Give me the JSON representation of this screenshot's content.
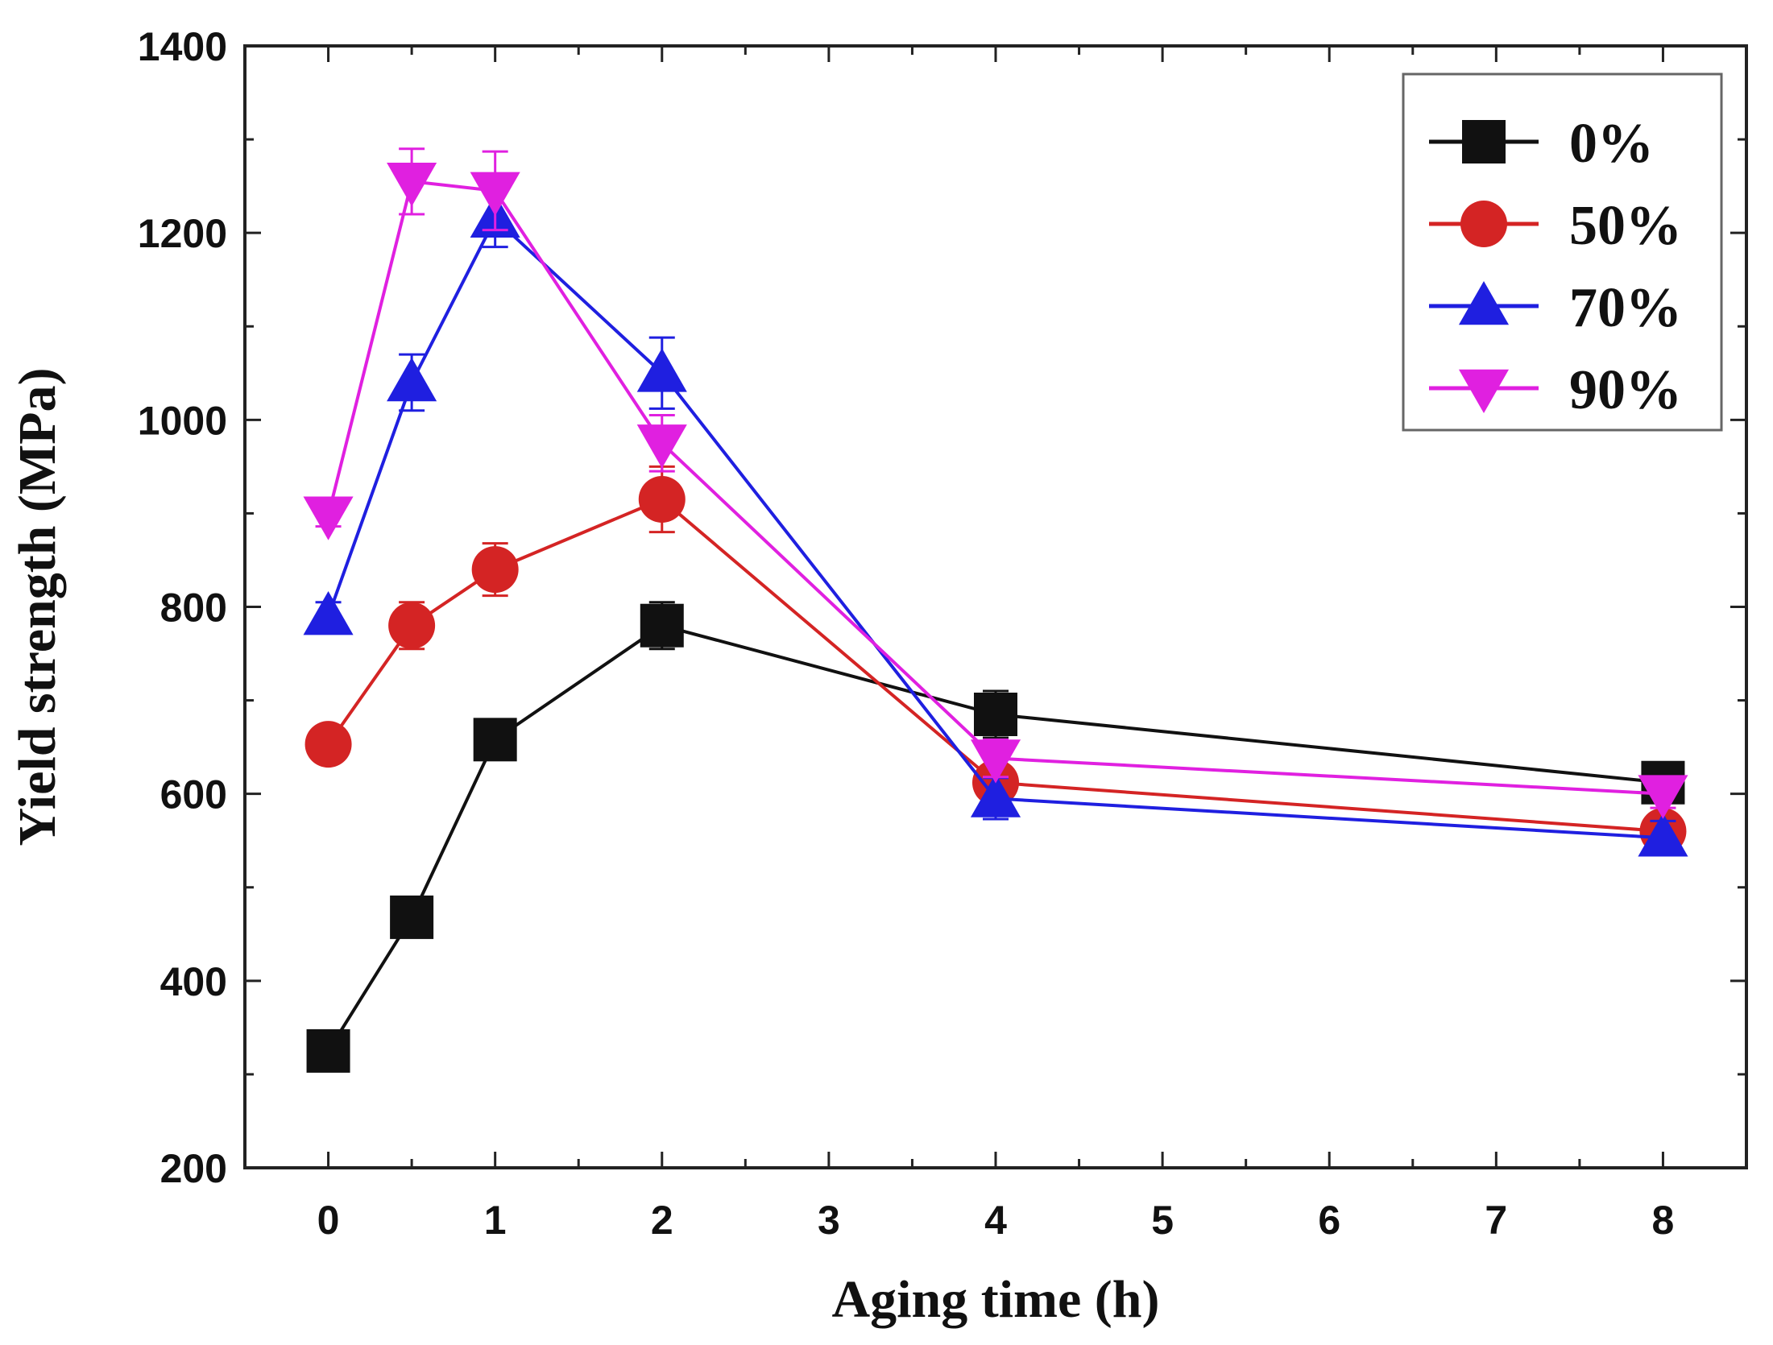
{
  "chart_data": {
    "type": "line",
    "xlabel": "Aging time (h)",
    "ylabel": "Yield strength (MPa)",
    "xlim": [
      -0.5,
      8.5
    ],
    "ylim": [
      200,
      1400
    ],
    "x_ticks": [
      0,
      1,
      2,
      3,
      4,
      5,
      6,
      7,
      8
    ],
    "y_ticks": [
      200,
      400,
      600,
      800,
      1000,
      1200,
      1400
    ],
    "x_tick_labels": [
      "0",
      "1",
      "2",
      "3",
      "4",
      "5",
      "6",
      "7",
      "8"
    ],
    "y_tick_labels": [
      "200",
      "400",
      "600",
      "800",
      "1000",
      "1200",
      "1400"
    ],
    "x": [
      0,
      0.5,
      1,
      2,
      4,
      8
    ],
    "legend_position": "top-right",
    "grid": false,
    "series": [
      {
        "name": "0%",
        "color": "#111111",
        "marker": "square",
        "values": [
          325,
          468,
          658,
          780,
          685,
          612
        ],
        "errors": [
          10,
          12,
          20,
          25,
          25,
          12
        ]
      },
      {
        "name": "50%",
        "color": "#d42424",
        "marker": "circle",
        "values": [
          653,
          780,
          840,
          915,
          612,
          560
        ],
        "errors": [
          10,
          25,
          28,
          35,
          15,
          15
        ]
      },
      {
        "name": "70%",
        "color": "#1f1fe0",
        "marker": "triangle-up",
        "values": [
          790,
          1040,
          1215,
          1050,
          595,
          553
        ],
        "errors": [
          15,
          30,
          30,
          38,
          22,
          18
        ]
      },
      {
        "name": "90%",
        "color": "#e020e0",
        "marker": "triangle-down",
        "values": [
          898,
          1255,
          1245,
          975,
          638,
          600
        ],
        "errors": [
          12,
          35,
          42,
          30,
          20,
          15
        ]
      }
    ]
  }
}
